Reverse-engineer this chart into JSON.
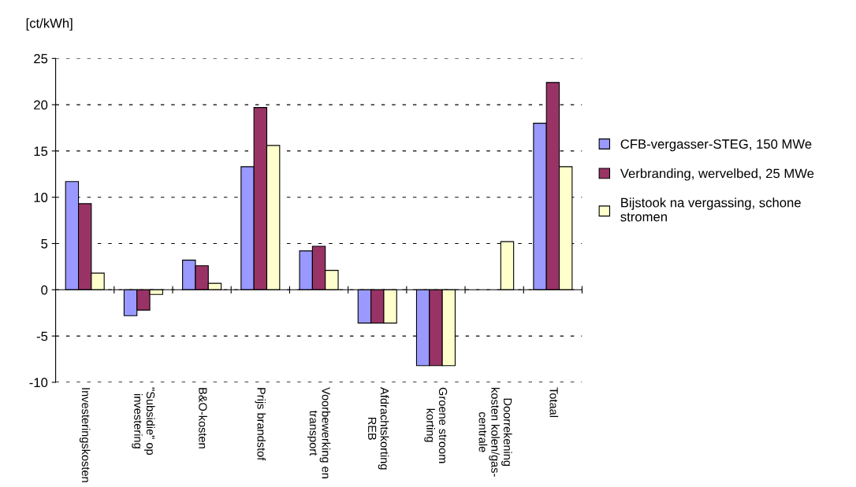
{
  "chart_data": {
    "type": "bar",
    "ylabel": "[ct/kWh]",
    "categories": [
      "Investeringskosten",
      "\"Subsidie\" op\ninvestering",
      "B&O-kosten",
      "Prijs brandstof",
      "Voorbewerking en\ntransport",
      "Afdrachtskorting\nREB",
      "Groene stroom\nkorting",
      "Doorrekening\nkosten kolen/gas-\ncentrale",
      "Totaal"
    ],
    "series": [
      {
        "name": "CFB-vergasser-STEG, 150 MWe",
        "color": "#9999ff",
        "values": [
          11.7,
          -2.8,
          3.2,
          13.3,
          4.2,
          -3.6,
          -8.2,
          null,
          18.0
        ]
      },
      {
        "name": "Verbranding, wervelbed, 25 MWe",
        "color": "#993366",
        "values": [
          9.3,
          -2.2,
          2.6,
          19.7,
          4.7,
          -3.6,
          -8.2,
          null,
          22.4
        ]
      },
      {
        "name": "Bijstook na vergassing, schone\nstromen",
        "color": "#ffffcc",
        "values": [
          1.8,
          -0.5,
          0.7,
          15.6,
          2.1,
          -3.6,
          -8.2,
          5.2,
          13.3
        ]
      }
    ],
    "ylim": [
      -10,
      25
    ],
    "yticks": [
      -10,
      -5,
      0,
      5,
      10,
      15,
      20,
      25
    ],
    "grid": "y",
    "legend": "right"
  }
}
